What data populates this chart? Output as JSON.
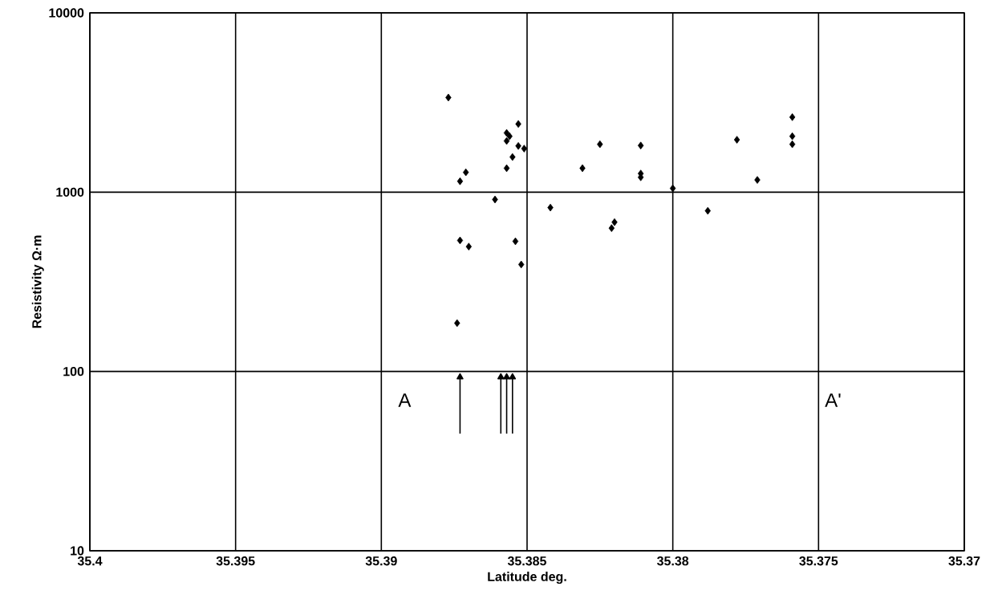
{
  "chart_data": {
    "type": "scatter",
    "xlabel": "Latitude deg.",
    "ylabel": "Resistivity Ω·m",
    "log": "y",
    "grid": true,
    "marker": "diamond",
    "xlim": [
      35.4,
      35.37
    ],
    "xticks": [
      35.4,
      35.395,
      35.39,
      35.385,
      35.38,
      35.375,
      35.37
    ],
    "ylim": [
      10,
      10000
    ],
    "yticks": [
      10,
      100,
      1000,
      10000
    ],
    "annotations": [
      "A",
      "A'"
    ],
    "series": [
      {
        "color": "#000000",
        "x": [
          35.3877,
          35.3853,
          35.3857,
          35.3856,
          35.3857,
          35.3853,
          35.3851,
          35.3855,
          35.3857,
          35.3871,
          35.3873,
          35.3861,
          35.3842,
          35.3873,
          35.387,
          35.3854,
          35.3852,
          35.3874,
          35.3831,
          35.3825,
          35.3811,
          35.3811,
          35.3811,
          35.38,
          35.382,
          35.3821,
          35.3788,
          35.3778,
          35.3771,
          35.3759,
          35.3759,
          35.3759
        ],
        "values": [
          3370,
          2400,
          2140,
          2050,
          1930,
          1810,
          1750,
          1570,
          1360,
          1290,
          1150,
          910,
          820,
          538,
          497,
          532,
          395,
          186,
          1360,
          1850,
          1820,
          1270,
          1210,
          1050,
          680,
          630,
          787,
          1960,
          1170,
          2620,
          2050,
          1850
        ]
      },
      {
        "type": "line",
        "color": "#000000",
        "marker": "triangle",
        "x": [
          35.3873,
          35.3873
        ],
        "values": [
          45,
          93
        ]
      },
      {
        "type": "line",
        "color": "#000000",
        "marker": "triangle",
        "x": [
          35.3859,
          35.3859
        ],
        "values": [
          45,
          93
        ]
      },
      {
        "type": "line",
        "color": "#000000",
        "marker": "triangle",
        "x": [
          35.3857,
          35.3857
        ],
        "values": [
          45,
          93
        ]
      },
      {
        "type": "line",
        "color": "#000000",
        "marker": "triangle",
        "x": [
          35.3855,
          35.3855
        ],
        "values": [
          45,
          93
        ]
      }
    ]
  }
}
